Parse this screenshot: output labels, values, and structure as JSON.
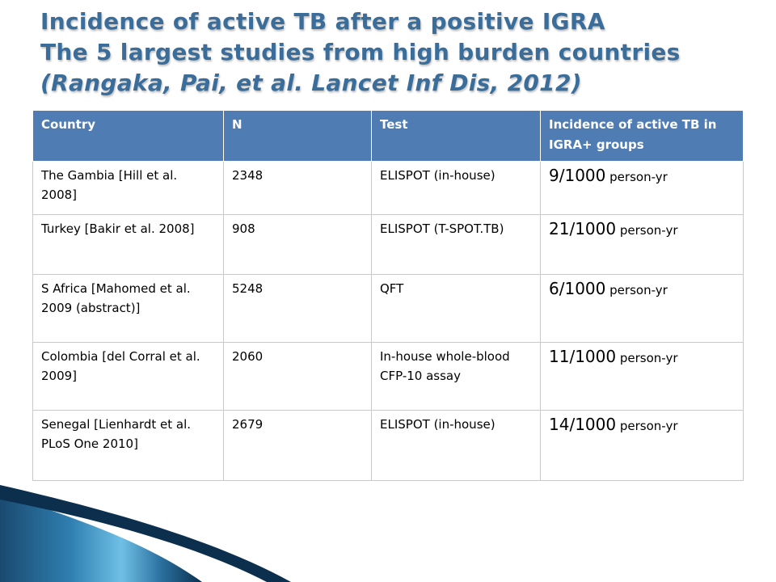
{
  "title": {
    "line1": "Incidence of active TB after a positive IGRA",
    "line2": "The 5 largest studies from high burden countries",
    "line3": "(Rangaka, Pai, et al. Lancet Inf Dis, 2012)"
  },
  "table": {
    "headers": {
      "country": "Country",
      "n": "N",
      "test": "Test",
      "incidence": "Incidence of active TB in IGRA+ groups"
    },
    "rows": [
      {
        "country": "The Gambia [Hill et al. 2008]",
        "n": "2348",
        "test": "ELISPOT (in-house)",
        "incidence_value": "9/1000",
        "incidence_unit": "person-yr"
      },
      {
        "country": "Turkey [Bakir et al. 2008]",
        "n": "908",
        "test": "ELISPOT (T-SPOT.TB)",
        "incidence_value": "21/1000",
        "incidence_unit": "person-yr"
      },
      {
        "country": "S Africa [Mahomed et al. 2009 (abstract)]",
        "n": "5248",
        "test": "QFT",
        "incidence_value": "6/1000",
        "incidence_unit": "person-yr"
      },
      {
        "country": "Colombia [del Corral et al. 2009]",
        "n": "2060",
        "test": "In-house whole-blood CFP-10 assay",
        "incidence_value": "11/1000",
        "incidence_unit": "person-yr"
      },
      {
        "country": "Senegal [Lienhardt et al. PLoS One 2010]",
        "n": "2679",
        "test": "ELISPOT (in-house)",
        "incidence_value": "14/1000",
        "incidence_unit": "person-yr"
      }
    ]
  },
  "colors": {
    "title": "#3a6d99",
    "header_bg": "#4f7cb3",
    "header_text": "#ffffff",
    "swoosh_dark": "#0b2f4d",
    "swoosh_light": "#6fc0e6"
  }
}
